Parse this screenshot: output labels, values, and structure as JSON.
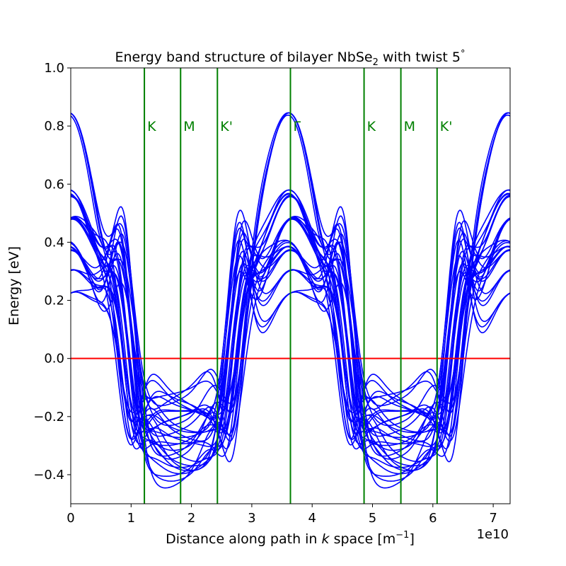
{
  "chart_data": {
    "type": "line",
    "title": "Energy band structure of bilayer NbSe",
    "title_sub": "2",
    "title_tail": " with twist 5",
    "title_deg": "°",
    "xlabel_pre": "Distance along path in ",
    "xlabel_k": "k",
    "xlabel_post": " space [m",
    "xlabel_sup": "−1",
    "xlabel_close": "]",
    "ylabel": "Energy [eV]",
    "x_offset_label": "1e10",
    "xlim": [
      0,
      7.28
    ],
    "ylim": [
      -0.5,
      1.0
    ],
    "x_scale_factor": 10000000000.0,
    "xticks": [
      0,
      1,
      2,
      3,
      4,
      5,
      6,
      7
    ],
    "xtick_labels": [
      "0",
      "1",
      "2",
      "3",
      "4",
      "5",
      "6",
      "7"
    ],
    "yticks": [
      -0.4,
      -0.2,
      0.0,
      0.2,
      0.4,
      0.6,
      0.8,
      1.0
    ],
    "ytick_labels": [
      "−0.4",
      "−0.2",
      "0.0",
      "0.2",
      "0.4",
      "0.6",
      "0.8",
      "1.0"
    ],
    "high_symmetry_points": [
      {
        "label": "K",
        "x": 1.22
      },
      {
        "label": "M",
        "x": 1.82
      },
      {
        "label": "K'",
        "x": 2.43
      },
      {
        "label": "Γ",
        "x": 3.64
      },
      {
        "label": "K",
        "x": 4.86
      },
      {
        "label": "M",
        "x": 5.47
      },
      {
        "label": "K'",
        "x": 6.07
      }
    ],
    "fermi_level": 0.0,
    "colors": {
      "bands": "#0000ff",
      "fermi": "#ff0000",
      "symmetry": "#008000"
    },
    "band_groups": {
      "gamma_valley_bands": [
        {
          "min": 0.0,
          "max": 0.92
        },
        {
          "min": -0.02,
          "max": 0.64
        },
        {
          "min": -0.03,
          "max": 0.635
        },
        {
          "min": -0.04,
          "max": 0.545
        },
        {
          "min": -0.05,
          "max": 0.535
        },
        {
          "min": -0.06,
          "max": 0.445
        },
        {
          "min": -0.08,
          "max": 0.435
        },
        {
          "min": -0.1,
          "max": 0.425
        },
        {
          "min": -0.12,
          "max": 0.345
        },
        {
          "min": -0.14,
          "max": 0.25
        }
      ],
      "lower_minima": [
        -0.49,
        -0.47,
        -0.45,
        -0.43,
        -0.39,
        -0.37,
        -0.35,
        -0.33,
        -0.3,
        -0.28,
        -0.26,
        -0.24,
        -0.22,
        -0.2,
        -0.18,
        -0.16
      ],
      "m_point_minima": [
        -0.375,
        -0.355,
        -0.315,
        -0.3,
        -0.29,
        -0.27,
        -0.25,
        -0.23,
        -0.21,
        -0.19,
        -0.17
      ],
      "k_region_maxima": [
        0.555,
        0.54,
        0.52,
        0.5,
        0.48,
        0.46,
        0.44,
        0.42,
        0.4,
        0.38,
        0.35,
        0.32,
        0.28
      ]
    }
  }
}
